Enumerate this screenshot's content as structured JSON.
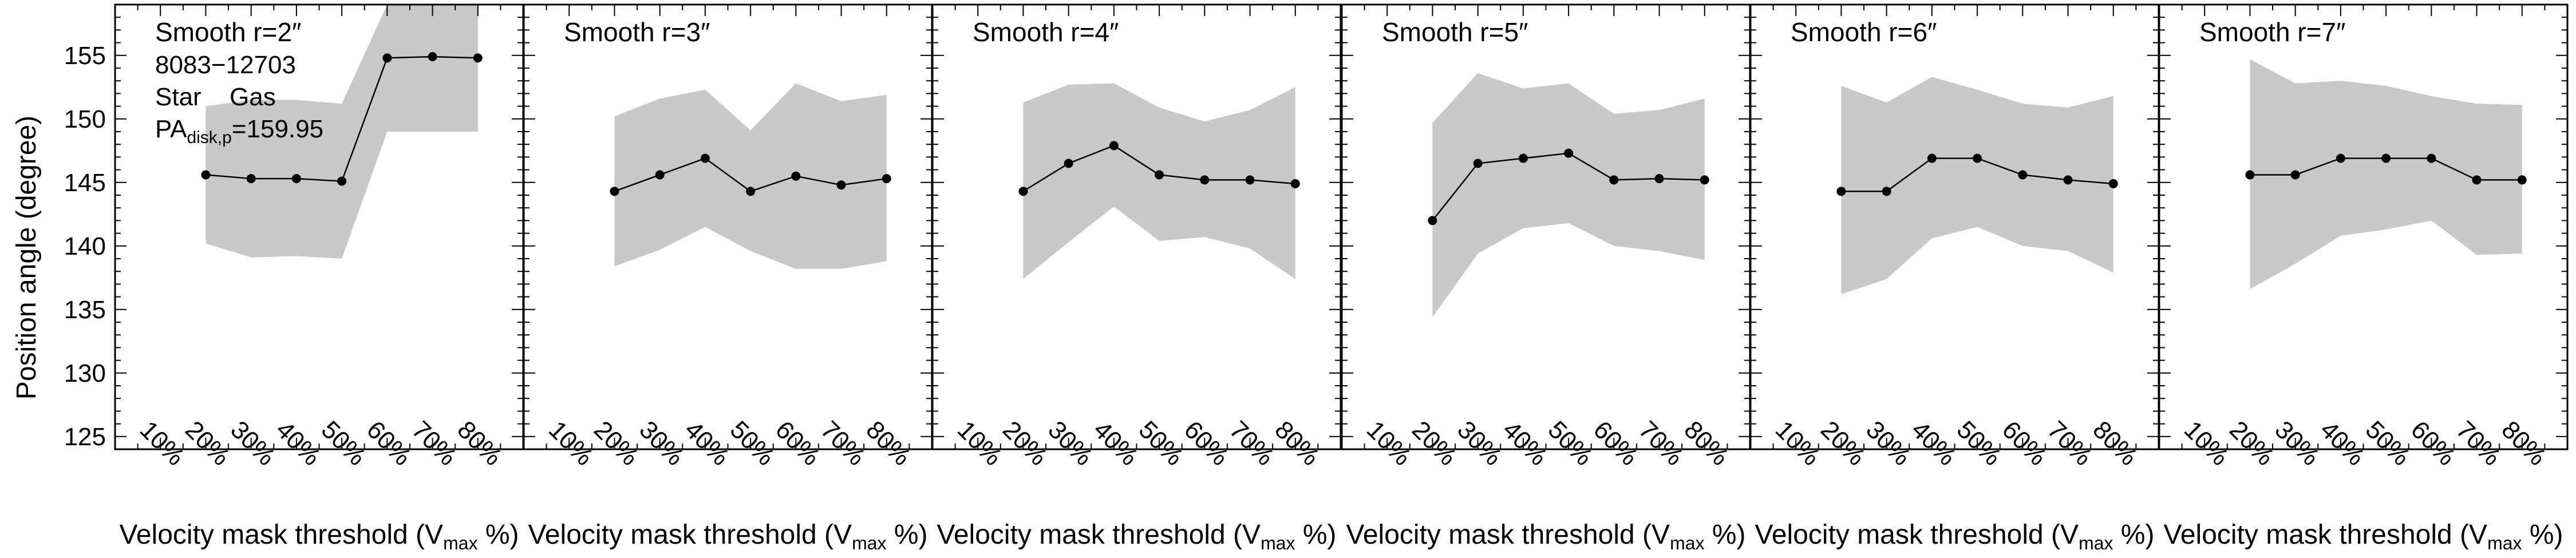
{
  "chart_data": {
    "type": "line",
    "ylabel": "Position angle (degree)",
    "ylim": [
      124,
      159
    ],
    "yticks": [
      125,
      130,
      135,
      140,
      145,
      150,
      155
    ],
    "xlim": [
      0,
      9
    ],
    "xtick_labels": [
      "10%",
      "20%",
      "30%",
      "40%",
      "50%",
      "60%",
      "70%",
      "80%"
    ],
    "xlabel_main": "Velocity mask threshold (V",
    "xlabel_sub": "max",
    "xlabel_end": " %)",
    "annotations": {
      "galaxy_id": "8083−12703",
      "legend_star": "Star",
      "legend_gas": "Gas",
      "pa_prefix": "PA",
      "pa_sub": "disk,p",
      "pa_value": "=159.95"
    },
    "colors": {
      "band": "#c8c8c8",
      "line": "#000000",
      "gas": "#e00000"
    },
    "panels": [
      {
        "title": "Smooth r=2″",
        "x": [
          2,
          3,
          4,
          5,
          6,
          7,
          8
        ],
        "values": [
          145.6,
          145.3,
          145.3,
          145.1,
          154.8,
          154.9,
          154.8
        ],
        "band_low": [
          140.2,
          139.1,
          139.2,
          139.0,
          149.0,
          149.0,
          149.0
        ],
        "band_high": [
          151.0,
          151.5,
          151.5,
          151.2,
          159.0,
          159.0,
          159.0
        ]
      },
      {
        "title": "Smooth r=3″",
        "x": [
          2,
          3,
          4,
          5,
          6,
          7,
          8
        ],
        "values": [
          144.3,
          145.6,
          146.9,
          144.3,
          145.5,
          144.8,
          145.3
        ],
        "band_low": [
          138.4,
          139.7,
          141.5,
          139.6,
          138.2,
          138.2,
          138.8
        ],
        "band_high": [
          150.2,
          151.6,
          152.3,
          149.1,
          152.8,
          151.4,
          151.9
        ]
      },
      {
        "title": "Smooth r=4″",
        "x": [
          2,
          3,
          4,
          5,
          6,
          7,
          8
        ],
        "values": [
          144.3,
          146.5,
          147.9,
          145.6,
          145.2,
          145.2,
          144.9
        ],
        "band_low": [
          137.4,
          140.3,
          143.1,
          140.4,
          140.7,
          139.8,
          137.4
        ],
        "band_high": [
          151.3,
          152.7,
          152.8,
          150.9,
          149.8,
          150.7,
          152.5
        ]
      },
      {
        "title": "Smooth r=5″",
        "x": [
          2,
          3,
          4,
          5,
          6,
          7,
          8
        ],
        "values": [
          142.0,
          146.5,
          146.9,
          147.3,
          145.2,
          145.3,
          145.2
        ],
        "band_low": [
          134.4,
          139.4,
          141.4,
          141.8,
          140.0,
          139.6,
          138.9
        ],
        "band_high": [
          149.7,
          153.6,
          152.4,
          152.8,
          150.4,
          150.7,
          151.6
        ]
      },
      {
        "title": "Smooth r=6″",
        "x": [
          2,
          3,
          4,
          5,
          6,
          7,
          8
        ],
        "values": [
          144.3,
          144.3,
          146.9,
          146.9,
          145.6,
          145.2,
          144.9
        ],
        "band_low": [
          136.2,
          137.4,
          140.6,
          141.5,
          140.0,
          139.6,
          137.9
        ],
        "band_high": [
          152.6,
          151.3,
          153.3,
          152.3,
          151.2,
          150.9,
          151.8
        ]
      },
      {
        "title": "Smooth r=7″",
        "x": [
          2,
          3,
          4,
          5,
          6,
          7,
          8
        ],
        "values": [
          145.6,
          145.6,
          146.9,
          146.9,
          146.9,
          145.2,
          145.2
        ],
        "band_low": [
          136.6,
          138.6,
          140.8,
          141.3,
          142.0,
          139.3,
          139.4
        ],
        "band_high": [
          154.7,
          152.8,
          153.0,
          152.6,
          151.8,
          151.2,
          151.1
        ]
      }
    ]
  }
}
